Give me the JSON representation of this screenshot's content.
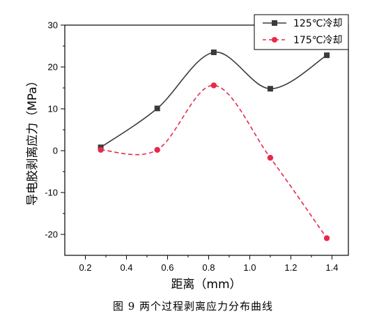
{
  "caption": "图 9   两个过程剥离应力分布曲线",
  "chart_data": {
    "type": "line",
    "xlabel": "距离（mm）",
    "ylabel": "导电胶剥离应力（MPa）",
    "xlim": [
      0.1,
      1.48
    ],
    "ylim": [
      -25,
      30
    ],
    "x_ticks": [
      "0.2",
      "0.4",
      "0.6",
      "0.8",
      "1.0",
      "1.2",
      "1.4"
    ],
    "y_ticks": [
      "30",
      "20",
      "10",
      "0",
      "-10",
      "-20"
    ],
    "legend_position": "top-right",
    "grid": false,
    "series": [
      {
        "name": "125℃冷却",
        "color": "#3a3a3a",
        "marker": "square",
        "dash": "solid",
        "x": [
          0.275,
          0.55,
          0.825,
          1.1,
          1.375
        ],
        "y": [
          0.8,
          10.1,
          23.5,
          14.8,
          22.8
        ]
      },
      {
        "name": "175℃冷却",
        "color": "#e8284a",
        "marker": "circle",
        "dash": "dashed",
        "x": [
          0.275,
          0.55,
          0.825,
          1.1,
          1.375
        ],
        "y": [
          0.2,
          0.2,
          15.6,
          -1.7,
          -20.9
        ]
      }
    ]
  }
}
